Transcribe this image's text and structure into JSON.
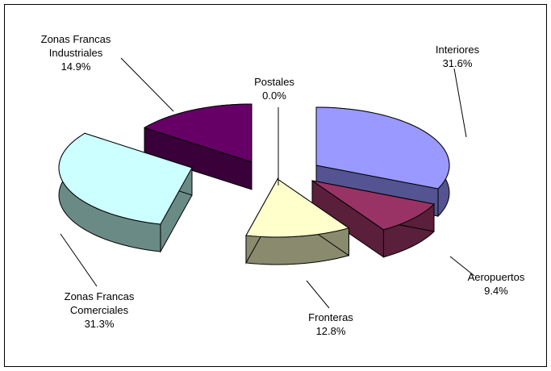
{
  "chart_data": {
    "type": "pie",
    "variant": "3d-exploded",
    "title": "",
    "categories": [
      "Interiores",
      "Aeropuertos",
      "Fronteras",
      "Zonas Francas Comerciales",
      "Zonas Francas Industriales",
      "Postales"
    ],
    "values": [
      31.6,
      9.4,
      12.8,
      31.3,
      14.9,
      0.0
    ],
    "value_labels": [
      "31.6%",
      "9.4%",
      "12.8%",
      "31.3%",
      "14.9%",
      "0.0%"
    ],
    "label_lines": [
      [
        "Interiores"
      ],
      [
        "Aeropuertos"
      ],
      [
        "Fronteras"
      ],
      [
        "Zonas Francas",
        "Comerciales"
      ],
      [
        "Zonas Francas",
        "Industriales"
      ],
      [
        "Postales"
      ]
    ],
    "colors": [
      "#9999ff",
      "#993366",
      "#ffffcc",
      "#ccffff",
      "#660066",
      "#000000"
    ],
    "side_colors": [
      "#545492",
      "#5a1f3a",
      "#8a8a6e",
      "#6a8a86",
      "#3a003a",
      "#000000"
    ],
    "legend": "none",
    "grid": false
  }
}
